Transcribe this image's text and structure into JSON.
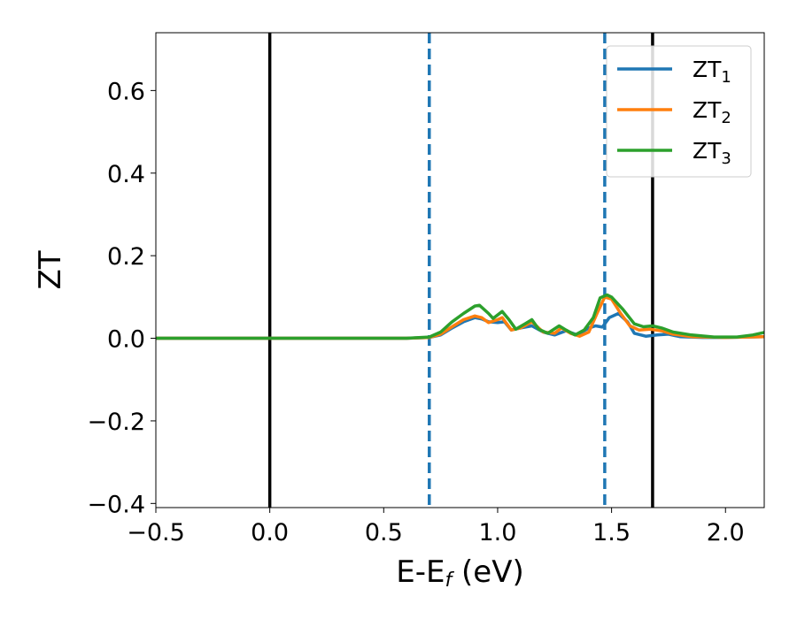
{
  "chart_data": {
    "type": "line",
    "title": "",
    "xlabel": {
      "main": "E-E",
      "sub": "f",
      "rest": " (eV)"
    },
    "ylabel": "ZT",
    "xlim": [
      -0.5,
      2.17
    ],
    "ylim": [
      -0.41,
      0.74
    ],
    "grid": false,
    "legend": "top-right",
    "xticks": [
      {
        "v": -0.5,
        "label": "−0.5"
      },
      {
        "v": 0.0,
        "label": "0.0"
      },
      {
        "v": 0.5,
        "label": "0.5"
      },
      {
        "v": 1.0,
        "label": "1.0"
      },
      {
        "v": 1.5,
        "label": "1.5"
      },
      {
        "v": 2.0,
        "label": "2.0"
      }
    ],
    "yticks": [
      {
        "v": -0.4,
        "label": "−0.4"
      },
      {
        "v": -0.2,
        "label": "−0.2"
      },
      {
        "v": 0.0,
        "label": "0.0"
      },
      {
        "v": 0.2,
        "label": "0.2"
      },
      {
        "v": 0.4,
        "label": "0.4"
      },
      {
        "v": 0.6,
        "label": "0.6"
      }
    ],
    "vlines": [
      {
        "x": 0.0,
        "style": "solid",
        "color": "#000000"
      },
      {
        "x": 1.68,
        "style": "solid",
        "color": "#000000"
      },
      {
        "x": 0.7,
        "style": "dashed",
        "color": "#1f77b4"
      },
      {
        "x": 1.47,
        "style": "dashed",
        "color": "#1f77b4"
      }
    ],
    "series": [
      {
        "name": "ZT",
        "sub": "1",
        "color": "#1f77b4",
        "points": [
          [
            -0.5,
            0
          ],
          [
            0.6,
            0
          ],
          [
            0.7,
            0.002
          ],
          [
            0.75,
            0.008
          ],
          [
            0.8,
            0.025
          ],
          [
            0.85,
            0.04
          ],
          [
            0.9,
            0.05
          ],
          [
            0.93,
            0.047
          ],
          [
            0.96,
            0.04
          ],
          [
            1.0,
            0.038
          ],
          [
            1.03,
            0.04
          ],
          [
            1.06,
            0.02
          ],
          [
            1.1,
            0.025
          ],
          [
            1.15,
            0.03
          ],
          [
            1.2,
            0.015
          ],
          [
            1.25,
            0.008
          ],
          [
            1.3,
            0.018
          ],
          [
            1.35,
            0.008
          ],
          [
            1.4,
            0.025
          ],
          [
            1.43,
            0.03
          ],
          [
            1.46,
            0.027
          ],
          [
            1.49,
            0.05
          ],
          [
            1.53,
            0.06
          ],
          [
            1.57,
            0.04
          ],
          [
            1.6,
            0.012
          ],
          [
            1.65,
            0.005
          ],
          [
            1.7,
            0.008
          ],
          [
            1.75,
            0.01
          ],
          [
            1.8,
            0.004
          ],
          [
            1.9,
            0.002
          ],
          [
            2.0,
            0.002
          ],
          [
            2.17,
            0.004
          ]
        ]
      },
      {
        "name": "ZT",
        "sub": "2",
        "color": "#ff7f0e",
        "points": [
          [
            -0.5,
            0
          ],
          [
            0.6,
            0
          ],
          [
            0.7,
            0.002
          ],
          [
            0.75,
            0.01
          ],
          [
            0.8,
            0.028
          ],
          [
            0.85,
            0.045
          ],
          [
            0.9,
            0.054
          ],
          [
            0.93,
            0.05
          ],
          [
            0.96,
            0.038
          ],
          [
            1.0,
            0.045
          ],
          [
            1.02,
            0.05
          ],
          [
            1.06,
            0.02
          ],
          [
            1.1,
            0.025
          ],
          [
            1.15,
            0.04
          ],
          [
            1.2,
            0.015
          ],
          [
            1.25,
            0.012
          ],
          [
            1.28,
            0.025
          ],
          [
            1.32,
            0.012
          ],
          [
            1.36,
            0.005
          ],
          [
            1.4,
            0.015
          ],
          [
            1.44,
            0.065
          ],
          [
            1.47,
            0.1
          ],
          [
            1.5,
            0.095
          ],
          [
            1.54,
            0.06
          ],
          [
            1.58,
            0.03
          ],
          [
            1.62,
            0.02
          ],
          [
            1.67,
            0.022
          ],
          [
            1.72,
            0.018
          ],
          [
            1.77,
            0.01
          ],
          [
            1.85,
            0.004
          ],
          [
            2.0,
            0.002
          ],
          [
            2.17,
            0.004
          ]
        ]
      },
      {
        "name": "ZT",
        "sub": "3",
        "color": "#2ca02c",
        "points": [
          [
            -0.5,
            0
          ],
          [
            0.6,
            0
          ],
          [
            0.7,
            0.003
          ],
          [
            0.75,
            0.015
          ],
          [
            0.8,
            0.04
          ],
          [
            0.85,
            0.06
          ],
          [
            0.9,
            0.078
          ],
          [
            0.92,
            0.08
          ],
          [
            0.96,
            0.06
          ],
          [
            0.98,
            0.048
          ],
          [
            1.02,
            0.065
          ],
          [
            1.05,
            0.045
          ],
          [
            1.08,
            0.022
          ],
          [
            1.12,
            0.035
          ],
          [
            1.15,
            0.045
          ],
          [
            1.18,
            0.022
          ],
          [
            1.22,
            0.012
          ],
          [
            1.27,
            0.03
          ],
          [
            1.3,
            0.02
          ],
          [
            1.34,
            0.008
          ],
          [
            1.38,
            0.02
          ],
          [
            1.42,
            0.05
          ],
          [
            1.45,
            0.098
          ],
          [
            1.48,
            0.105
          ],
          [
            1.5,
            0.1
          ],
          [
            1.55,
            0.07
          ],
          [
            1.6,
            0.035
          ],
          [
            1.64,
            0.028
          ],
          [
            1.68,
            0.03
          ],
          [
            1.72,
            0.025
          ],
          [
            1.77,
            0.015
          ],
          [
            1.85,
            0.008
          ],
          [
            1.95,
            0.003
          ],
          [
            2.05,
            0.003
          ],
          [
            2.12,
            0.008
          ],
          [
            2.17,
            0.014
          ]
        ]
      }
    ]
  }
}
